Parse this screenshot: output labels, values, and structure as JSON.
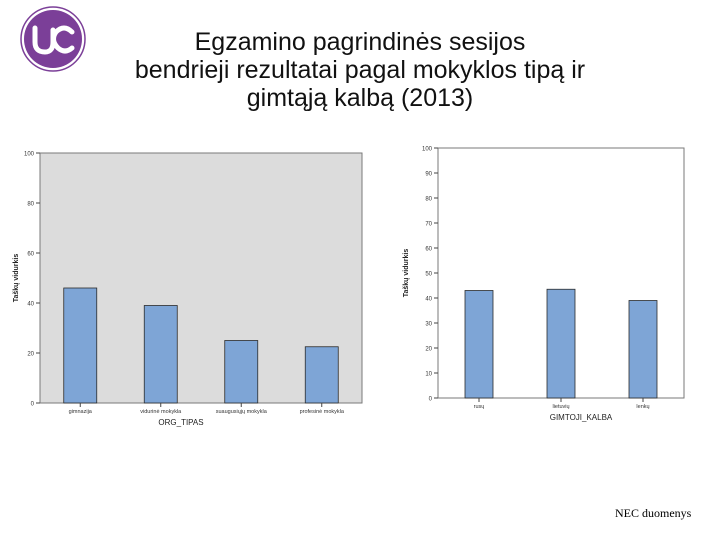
{
  "title": {
    "line1": "Egzamino pagrindinės sesijos",
    "line2": "bendrieji rezultatai pagal mokyklos tipą ir",
    "line3": "gimtąją kalbą (2013)"
  },
  "logo": {
    "icon": "usc-logo-icon",
    "color": "#7b3f98"
  },
  "footer": "NEC duomenys",
  "chart_data": [
    {
      "type": "bar",
      "categories": [
        "gimnazija",
        "vidurinė mokykla",
        "suaugusiųjų mokykla",
        "profesinė mokykla"
      ],
      "values": [
        46,
        39,
        25,
        22.5
      ],
      "xlabel": "ORG_TIPAS",
      "ylabel": "Taškų vidurkis",
      "ylim": [
        0,
        100
      ],
      "yticks": [
        0,
        20,
        40,
        60,
        80,
        100
      ],
      "ytick_labels": [
        "0",
        "20",
        "40",
        "60",
        "80",
        "100"
      ],
      "grid": false,
      "bar_color": "#7ea5d6",
      "plot_background": "#dcdcdc"
    },
    {
      "type": "bar",
      "categories": [
        "rusų",
        "lietuvių",
        "lenkų"
      ],
      "values": [
        43,
        43.5,
        39
      ],
      "xlabel": "GIMTOJI_KALBA",
      "ylabel": "Taškų vidurkis",
      "ylim": [
        0,
        100
      ],
      "yticks": [
        0,
        10,
        20,
        30,
        40,
        50,
        60,
        70,
        80,
        90,
        100
      ],
      "ytick_labels": [
        "0",
        "10",
        "20",
        "30",
        "40",
        "50",
        "60",
        "70",
        "80",
        "90",
        "100"
      ],
      "grid": false,
      "bar_color": "#7ea5d6",
      "plot_background": "#ffffff"
    }
  ]
}
